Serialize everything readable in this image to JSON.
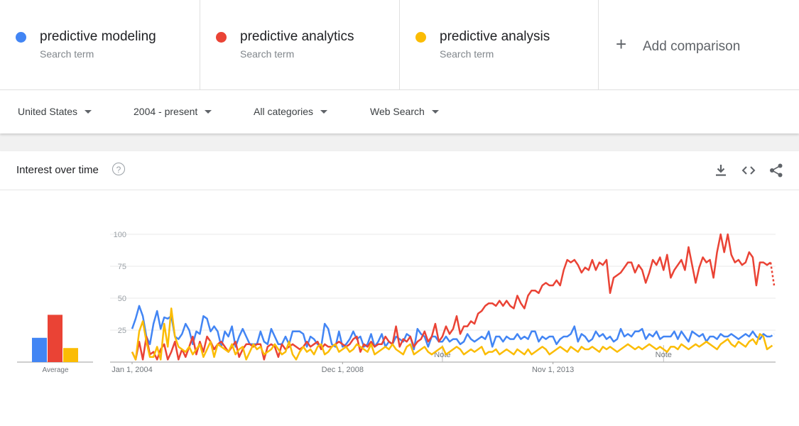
{
  "terms": [
    {
      "name": "predictive modeling",
      "sub": "Search term",
      "color": "#4285f4"
    },
    {
      "name": "predictive analytics",
      "sub": "Search term",
      "color": "#ea4335"
    },
    {
      "name": "predictive analysis",
      "sub": "Search term",
      "color": "#fbbc04"
    }
  ],
  "add_comparison": {
    "icon": "+",
    "label": "Add comparison"
  },
  "filters": {
    "region": "United States",
    "time": "2004 - present",
    "category": "All categories",
    "search_type": "Web Search"
  },
  "card": {
    "title": "Interest over time",
    "help": "?"
  },
  "icons": [
    "download-icon",
    "embed-icon",
    "share-icon"
  ],
  "chart_data": {
    "type": "line",
    "x_ticks": [
      "Jan 1, 2004",
      "Dec 1, 2008",
      "Nov 1, 2013"
    ],
    "y_ticks": [
      25,
      50,
      75,
      100
    ],
    "ylim": [
      0,
      100
    ],
    "annotations": [
      "Note",
      "Note"
    ],
    "average": {
      "label": "Average",
      "values": [
        19,
        37,
        11
      ]
    },
    "series": [
      {
        "name": "predictive modeling",
        "color": "#4285f4",
        "values": [
          26,
          34,
          44,
          36,
          20,
          14,
          30,
          40,
          26,
          35,
          34,
          36,
          20,
          18,
          22,
          30,
          25,
          14,
          24,
          22,
          36,
          34,
          24,
          28,
          24,
          12,
          24,
          20,
          28,
          12,
          20,
          26,
          20,
          14,
          14,
          14,
          24,
          16,
          14,
          26,
          20,
          14,
          14,
          20,
          14,
          24,
          24,
          24,
          22,
          12,
          20,
          18,
          14,
          12,
          30,
          26,
          14,
          12,
          24,
          12,
          14,
          18,
          24,
          18,
          20,
          12,
          14,
          22,
          12,
          16,
          22,
          12,
          16,
          14,
          20,
          18,
          16,
          22,
          20,
          10,
          26,
          22,
          20,
          12,
          20,
          20,
          16,
          16,
          20,
          16,
          18,
          18,
          14,
          16,
          22,
          18,
          16,
          18,
          20,
          18,
          24,
          12,
          20,
          20,
          16,
          20,
          18,
          18,
          22,
          18,
          20,
          18,
          24,
          24,
          16,
          20,
          18,
          20,
          20,
          14,
          18,
          20,
          20,
          22,
          28,
          16,
          22,
          20,
          16,
          18,
          24,
          20,
          22,
          18,
          20,
          16,
          18,
          26,
          20,
          22,
          20,
          24,
          24,
          26,
          18,
          22,
          20,
          24,
          18,
          20,
          20,
          20,
          24,
          18,
          24,
          20,
          16,
          24,
          22,
          20,
          22,
          16,
          20,
          20,
          18,
          22,
          20,
          20,
          22,
          20,
          18,
          20,
          22,
          20,
          24,
          20,
          18,
          22,
          20,
          20,
          22
        ]
      },
      {
        "name": "predictive analytics",
        "color": "#ea4335",
        "values": [
          8,
          2,
          16,
          2,
          20,
          6,
          8,
          2,
          10,
          14,
          2,
          8,
          16,
          2,
          10,
          4,
          12,
          20,
          6,
          16,
          8,
          20,
          16,
          10,
          14,
          16,
          12,
          8,
          12,
          16,
          4,
          10,
          14,
          14,
          12,
          14,
          14,
          2,
          12,
          14,
          12,
          4,
          14,
          10,
          12,
          14,
          12,
          10,
          12,
          16,
          12,
          14,
          16,
          10,
          14,
          12,
          12,
          14,
          16,
          14,
          12,
          14,
          18,
          20,
          8,
          14,
          12,
          16,
          12,
          14,
          14,
          20,
          16,
          14,
          28,
          12,
          18,
          16,
          20,
          12,
          16,
          18,
          24,
          16,
          20,
          30,
          16,
          20,
          28,
          22,
          26,
          36,
          22,
          28,
          28,
          32,
          30,
          38,
          40,
          44,
          46,
          46,
          44,
          48,
          44,
          48,
          44,
          42,
          52,
          46,
          42,
          52,
          56,
          56,
          54,
          60,
          62,
          60,
          60,
          64,
          60,
          72,
          80,
          78,
          80,
          76,
          70,
          74,
          72,
          80,
          72,
          78,
          76,
          80,
          54,
          66,
          68,
          70,
          74,
          78,
          78,
          70,
          76,
          72,
          62,
          70,
          80,
          76,
          82,
          72,
          84,
          66,
          72,
          76,
          80,
          72,
          90,
          76,
          62,
          74,
          82,
          78,
          80,
          66,
          86,
          100,
          86,
          100,
          84,
          78,
          80,
          76,
          78,
          86,
          82,
          60,
          78,
          78,
          76,
          78,
          60
        ]
      },
      {
        "name": "predictive analysis",
        "color": "#fbbc04",
        "values": [
          8,
          2,
          24,
          32,
          16,
          4,
          4,
          12,
          2,
          30,
          12,
          42,
          20,
          12,
          10,
          8,
          12,
          6,
          10,
          14,
          4,
          10,
          16,
          4,
          14,
          12,
          10,
          8,
          14,
          6,
          10,
          12,
          2,
          8,
          14,
          10,
          12,
          6,
          8,
          10,
          14,
          10,
          6,
          8,
          16,
          6,
          2,
          8,
          12,
          8,
          10,
          6,
          12,
          14,
          6,
          8,
          12,
          14,
          8,
          10,
          12,
          8,
          10,
          14,
          12,
          10,
          8,
          14,
          6,
          8,
          10,
          12,
          10,
          14,
          10,
          8,
          6,
          12,
          14,
          6,
          8,
          10,
          12,
          8,
          6,
          8,
          10,
          12,
          6,
          8,
          10,
          12,
          10,
          6,
          8,
          10,
          8,
          10,
          12,
          6,
          8,
          8,
          10,
          6,
          8,
          10,
          8,
          6,
          10,
          8,
          6,
          10,
          6,
          8,
          10,
          12,
          10,
          6,
          8,
          10,
          12,
          10,
          8,
          12,
          10,
          8,
          12,
          10,
          10,
          12,
          10,
          8,
          12,
          10,
          12,
          10,
          8,
          10,
          12,
          14,
          12,
          10,
          12,
          10,
          12,
          14,
          12,
          10,
          12,
          10,
          8,
          12,
          12,
          10,
          14,
          12,
          10,
          12,
          14,
          12,
          14,
          16,
          14,
          12,
          10,
          14,
          16,
          18,
          14,
          12,
          16,
          14,
          12,
          16,
          18,
          14,
          22,
          20,
          10,
          12,
          14
        ]
      }
    ]
  }
}
